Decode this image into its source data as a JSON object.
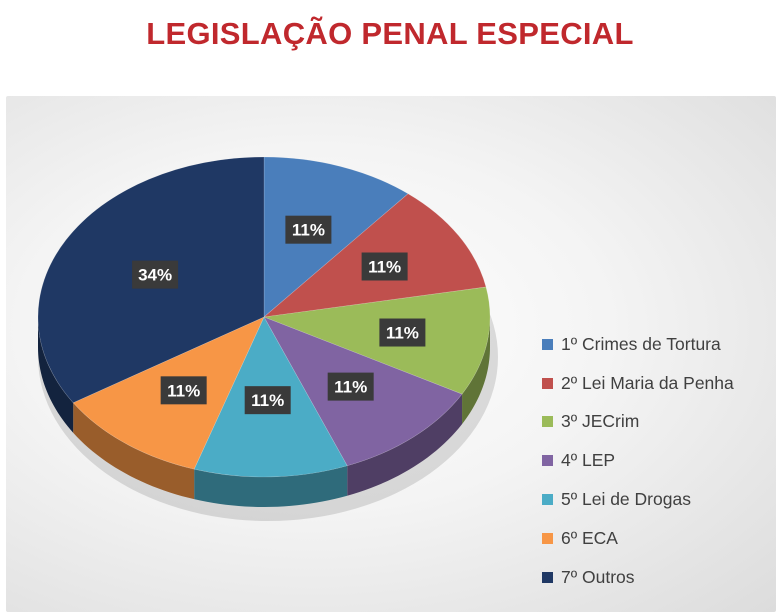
{
  "chart_data": {
    "type": "pie",
    "title": "LEGISLAÇÃO PENAL ESPECIAL",
    "title_color": "#c0282d",
    "three_d": true,
    "legend_position": "right",
    "label_style": {
      "background": "#3a3a3a",
      "color": "#ffffff"
    },
    "slices": [
      {
        "label": "1º Crimes de Tortura",
        "value": 11,
        "display": "11%",
        "color": "#4a7ebb"
      },
      {
        "label": "2º Lei Maria da Penha",
        "value": 11,
        "display": "11%",
        "color": "#c0504d"
      },
      {
        "label": "3º JECrim",
        "value": 11,
        "display": "11%",
        "color": "#9bbb59"
      },
      {
        "label": "4º LEP",
        "value": 11,
        "display": "11%",
        "color": "#8064a2"
      },
      {
        "label": "5º Lei de Drogas",
        "value": 11,
        "display": "11%",
        "color": "#4bacc6"
      },
      {
        "label": "6º ECA",
        "value": 11,
        "display": "11%",
        "color": "#f79646"
      },
      {
        "label": "7º Outros",
        "value": 34,
        "display": "34%",
        "color": "#1f3864"
      }
    ]
  }
}
